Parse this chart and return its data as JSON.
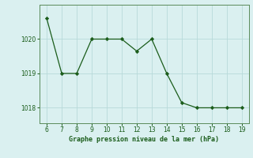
{
  "x": [
    6,
    7,
    8,
    9,
    10,
    11,
    12,
    13,
    14,
    15,
    16,
    17,
    18,
    19
  ],
  "y": [
    1020.6,
    1019.0,
    1019.0,
    1020.0,
    1020.0,
    1020.0,
    1019.65,
    1020.0,
    1019.0,
    1018.15,
    1018.0,
    1018.0,
    1018.0,
    1018.0
  ],
  "title": "Graphe pression niveau de la mer (hPa)",
  "xlim": [
    5.5,
    19.5
  ],
  "ylim": [
    1017.55,
    1021.0
  ],
  "yticks": [
    1018,
    1019,
    1020
  ],
  "xticks": [
    6,
    7,
    8,
    9,
    10,
    11,
    12,
    13,
    14,
    15,
    16,
    17,
    18,
    19
  ],
  "line_color": "#1a5c1a",
  "marker_color": "#1a5c1a",
  "bg_color": "#daf0f0",
  "grid_color": "#b8dada",
  "title_color": "#1a5c1a",
  "tick_color": "#1a5c1a",
  "spine_color": "#5a8a5a"
}
